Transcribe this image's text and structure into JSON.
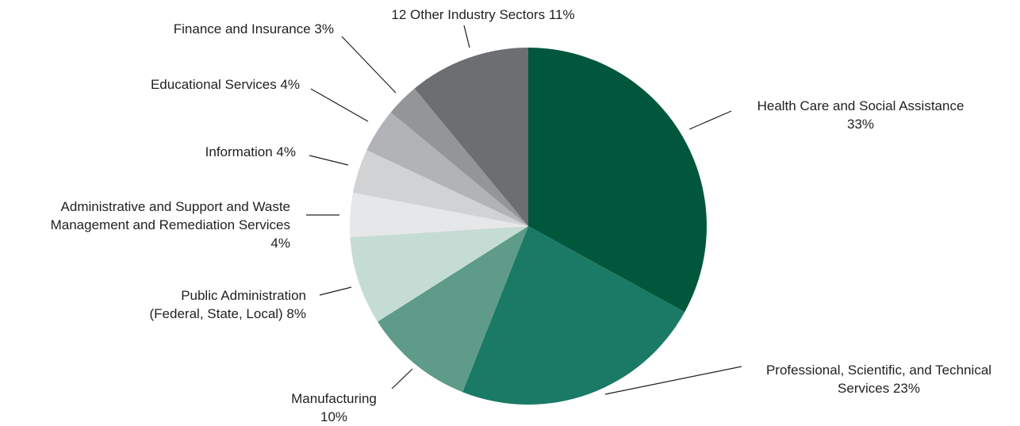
{
  "chart_data": {
    "type": "pie",
    "start": "12 o'clock",
    "direction": "clockwise",
    "slices": [
      {
        "key": "health",
        "value": 33,
        "lines": [
          "Health Care and Social Assistance",
          "33%"
        ],
        "color": "#01573c"
      },
      {
        "key": "professional",
        "value": 23,
        "lines": [
          "Professional, Scientific, and Technical",
          "Services 23%"
        ],
        "color": "#1a7a66"
      },
      {
        "key": "manufacturing",
        "value": 10,
        "lines": [
          "Manufacturing",
          "10%"
        ],
        "color": "#5e9b88"
      },
      {
        "key": "public-admin",
        "value": 8,
        "lines": [
          "Public Administration",
          "(Federal, State, Local) 8%"
        ],
        "color": "#c5dcd4"
      },
      {
        "key": "admin-support",
        "value": 4,
        "lines": [
          "Administrative and Support and Waste",
          "Management and Remediation Services",
          "4%"
        ],
        "color": "#e6e7e8"
      },
      {
        "key": "information",
        "value": 4,
        "lines": [
          "Information 4%"
        ],
        "color": "#d1d2d4"
      },
      {
        "key": "educational",
        "value": 4,
        "lines": [
          "Educational Services 4%"
        ],
        "color": "#b2b3b6"
      },
      {
        "key": "finance",
        "value": 3,
        "lines": [
          "Finance and Insurance 3%"
        ],
        "color": "#939598"
      },
      {
        "key": "other",
        "value": 11,
        "lines": [
          "12 Other Industry Sectors 11%"
        ],
        "color": "#6c6e71"
      }
    ]
  }
}
